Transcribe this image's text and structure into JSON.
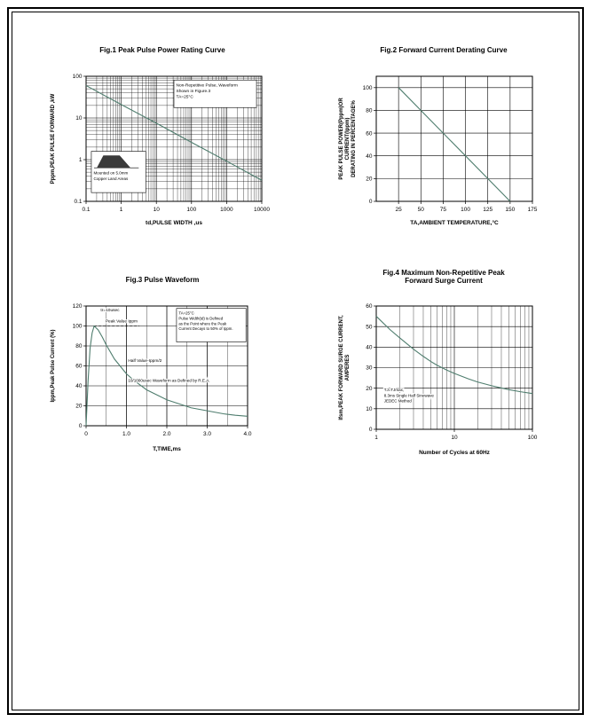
{
  "page": {
    "background": "#ffffff",
    "accent_line_color": "#4f7d6e"
  },
  "chart_data": [
    {
      "id": "fig1",
      "type": "line",
      "title": "Fig.1  Peak Pulse Power Rating Curve",
      "xlabel": "td,PULSE WIDTH ,us",
      "ylabel": "Pppm,PEAK PULSE FORWARD ,kW",
      "x_scale": "log",
      "y_scale": "log",
      "xlim": [
        0.1,
        10000
      ],
      "ylim": [
        0.1,
        100
      ],
      "x_ticks": [
        {
          "v": 0.1,
          "l": "0.1"
        },
        {
          "v": 1,
          "l": "1"
        },
        {
          "v": 10,
          "l": "10"
        },
        {
          "v": 100,
          "l": "100"
        },
        {
          "v": 1000,
          "l": "1000"
        },
        {
          "v": 10000,
          "l": "10000"
        }
      ],
      "y_ticks": [
        {
          "v": 0.1,
          "l": "0.1"
        },
        {
          "v": 1,
          "l": "1"
        },
        {
          "v": 10,
          "l": "10"
        },
        {
          "v": 100,
          "l": "100"
        }
      ],
      "x_minor": "log",
      "y_minor": "log",
      "line_color": "#4f7d6e",
      "series": [
        {
          "name": "peak-pulse-power-kw",
          "points": [
            [
              0.1,
              60
            ],
            [
              1,
              21
            ],
            [
              10,
              7.5
            ],
            [
              100,
              2.6
            ],
            [
              1000,
              0.92
            ],
            [
              10000,
              0.32
            ]
          ]
        }
      ],
      "annotations": [
        {
          "name": "note-non-repetitive",
          "fx": 0.5,
          "fy": 0.03,
          "w": 0.47,
          "h": 0.22,
          "box": true,
          "size": 4.8,
          "text": "Non-Repetitive Pulse, Waveform\nShown in Figure.3\nTA=25°C"
        },
        {
          "name": "note-mounting",
          "fx": 0.03,
          "fy": 0.6,
          "w": 0.31,
          "h": 0.33,
          "box": true,
          "size": 4.5,
          "glyph": "pulse",
          "text": "Mounted on 5.0mm\nCopper Land Areas"
        }
      ]
    },
    {
      "id": "fig2",
      "type": "line",
      "title": "Fig.2  Forward Current Derating Curve",
      "xlabel": "TA,AMBIENT TEMPERATURE,°C",
      "ylabel": "PEAK PULSE POWER(Pppm)OR CURRENT(Ippm)\nDERATING IN PERCENTAGE%",
      "x_scale": "linear",
      "y_scale": "linear",
      "xlim": [
        0,
        175
      ],
      "ylim": [
        0,
        110
      ],
      "x_ticks": [
        {
          "v": 25,
          "l": "25"
        },
        {
          "v": 50,
          "l": "50"
        },
        {
          "v": 75,
          "l": "75"
        },
        {
          "v": 100,
          "l": "100"
        },
        {
          "v": 125,
          "l": "125"
        },
        {
          "v": 150,
          "l": "150"
        },
        {
          "v": 175,
          "l": "175"
        }
      ],
      "y_ticks": [
        {
          "v": 0,
          "l": "0"
        },
        {
          "v": 20,
          "l": "20"
        },
        {
          "v": 40,
          "l": "40"
        },
        {
          "v": 60,
          "l": "60"
        },
        {
          "v": 80,
          "l": "80"
        },
        {
          "v": 100,
          "l": "100"
        }
      ],
      "line_color": "#4f7d6e",
      "series": [
        {
          "name": "derating-percent",
          "points": [
            [
              25,
              100
            ],
            [
              150,
              0
            ]
          ]
        }
      ],
      "annotations": []
    },
    {
      "id": "fig3",
      "type": "line",
      "title": "Fig.3  Pulse Waveform",
      "xlabel": "T,TIME,ms",
      "ylabel": "Ippm,Peak Pulse Current (%)",
      "x_scale": "linear",
      "y_scale": "linear",
      "xlim": [
        0,
        4
      ],
      "ylim": [
        0,
        120
      ],
      "x_ticks": [
        {
          "v": 0,
          "l": "0"
        },
        {
          "v": 1,
          "l": "1.0"
        },
        {
          "v": 2,
          "l": "2.0"
        },
        {
          "v": 3,
          "l": "3.0"
        },
        {
          "v": 4,
          "l": "4.0"
        }
      ],
      "y_ticks": [
        {
          "v": 0,
          "l": "0"
        },
        {
          "v": 20,
          "l": "20"
        },
        {
          "v": 40,
          "l": "40"
        },
        {
          "v": 60,
          "l": "60"
        },
        {
          "v": 80,
          "l": "80"
        },
        {
          "v": 100,
          "l": "100"
        },
        {
          "v": 120,
          "l": "120"
        }
      ],
      "x_minor_step": 0.5,
      "line_color": "#4f7d6e",
      "series": [
        {
          "name": "pulse-waveform-percent",
          "points": [
            [
              0,
              0
            ],
            [
              0.05,
              45
            ],
            [
              0.1,
              78
            ],
            [
              0.15,
              93
            ],
            [
              0.2,
              100
            ],
            [
              0.3,
              96
            ],
            [
              0.4,
              89
            ],
            [
              0.5,
              81
            ],
            [
              0.7,
              67
            ],
            [
              0.9,
              57
            ],
            [
              1.0,
              52
            ],
            [
              1.2,
              45
            ],
            [
              1.5,
              36
            ],
            [
              1.8,
              30
            ],
            [
              2.0,
              26
            ],
            [
              2.3,
              22
            ],
            [
              2.6,
              18
            ],
            [
              3.0,
              15
            ],
            [
              3.4,
              12
            ],
            [
              3.7,
              10.5
            ],
            [
              4.0,
              9.5
            ]
          ]
        }
      ],
      "lines": [
        {
          "x1": 0.05,
          "y1": 0.1667,
          "x2": 0.33,
          "y2": 0.1667,
          "dashed": true
        }
      ],
      "annotations": [
        {
          "name": "note-tr",
          "fx": 0.09,
          "fy": 0.01,
          "size": 4.8,
          "bg": true,
          "text": "tr=10usec"
        },
        {
          "name": "note-peak-value",
          "fx": 0.12,
          "fy": 0.1,
          "size": 4.8,
          "bg": true,
          "text": "Peak  Value    Ippm"
        },
        {
          "name": "note-half-value",
          "fx": 0.26,
          "fy": 0.43,
          "size": 4.8,
          "bg": true,
          "text": "Half  Value-Ippm/2"
        },
        {
          "name": "note-rea",
          "fx": 0.26,
          "fy": 0.6,
          "size": 4.6,
          "bg": true,
          "text": "10/1000usec Waveform as Defined by R.E.A."
        },
        {
          "name": "note-pulse-width",
          "fx": 0.56,
          "fy": 0.02,
          "w": 0.43,
          "h": 0.28,
          "box": true,
          "size": 4.3,
          "text": "TA=25°C\nPulse Width(td) is Defined\nas the Point where the Peak\nCurrent Decays to 50% of Ippm."
        }
      ]
    },
    {
      "id": "fig4",
      "type": "line",
      "title": "Fig.4  Maximum Non-Repetitive Peak\nForward Surge Current",
      "xlabel": "Number of Cycles at 60Hz",
      "ylabel": "Ifsm,PEAK FORWARD SURGE CURRENT,\nAMPERES",
      "x_scale": "log",
      "y_scale": "linear",
      "xlim": [
        1,
        100
      ],
      "ylim": [
        0,
        60
      ],
      "x_ticks": [
        {
          "v": 1,
          "l": "1"
        },
        {
          "v": 10,
          "l": "10"
        },
        {
          "v": 100,
          "l": "100"
        }
      ],
      "y_ticks": [
        {
          "v": 0,
          "l": "0"
        },
        {
          "v": 10,
          "l": "10"
        },
        {
          "v": 20,
          "l": "20"
        },
        {
          "v": 30,
          "l": "30"
        },
        {
          "v": 40,
          "l": "40"
        },
        {
          "v": 50,
          "l": "50"
        },
        {
          "v": 60,
          "l": "60"
        }
      ],
      "x_minor": "log",
      "line_color": "#4f7d6e",
      "series": [
        {
          "name": "surge-current-amperes",
          "points": [
            [
              1,
              55
            ],
            [
              1.5,
              48.5
            ],
            [
              2,
              44.5
            ],
            [
              3,
              39
            ],
            [
              4,
              35.5
            ],
            [
              5,
              33
            ],
            [
              6,
              31.2
            ],
            [
              8,
              28.8
            ],
            [
              10,
              27.2
            ],
            [
              15,
              24.6
            ],
            [
              20,
              23
            ],
            [
              30,
              21.2
            ],
            [
              40,
              20.1
            ],
            [
              50,
              19.3
            ],
            [
              70,
              18.3
            ],
            [
              100,
              17.4
            ]
          ]
        }
      ],
      "annotations": [
        {
          "name": "note-jedec",
          "fx": 0.05,
          "fy": 0.66,
          "size": 4.5,
          "bg": true,
          "text": "TJ=TJmax,\n8.3ms Single Half  Sinewave\nJEDEC Method"
        }
      ]
    }
  ]
}
